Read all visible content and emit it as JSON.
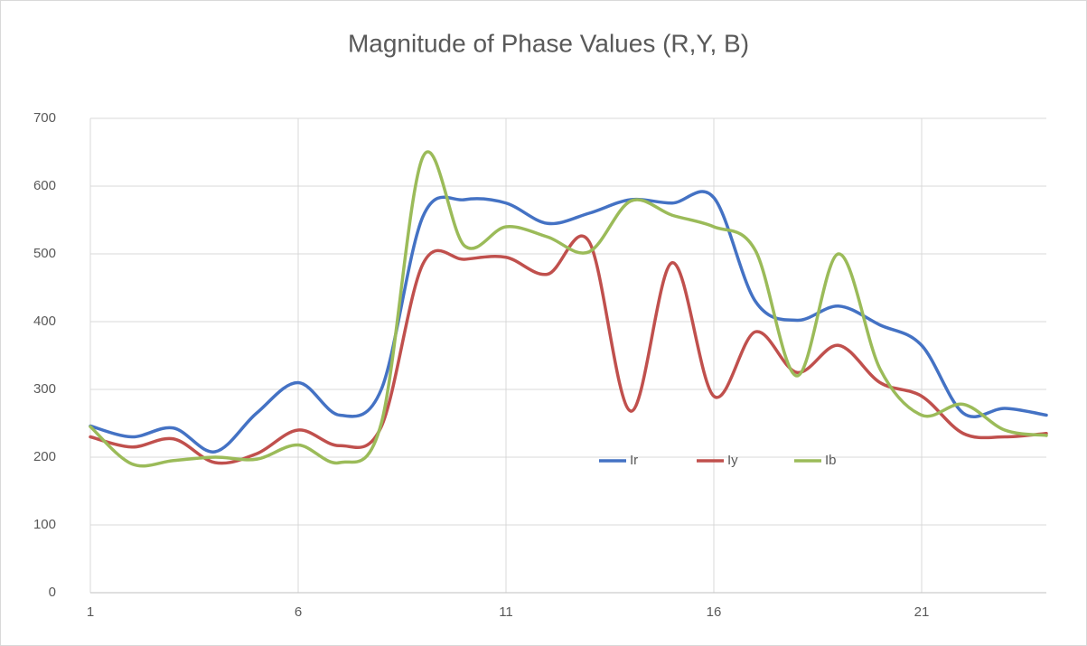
{
  "chart_data": {
    "type": "line",
    "title": "Magnitude of Phase Values (R,Y, B)",
    "x": [
      1,
      2,
      3,
      4,
      5,
      6,
      7,
      8,
      9,
      10,
      11,
      12,
      13,
      14,
      15,
      16,
      17,
      18,
      19,
      20,
      21,
      22,
      23,
      24
    ],
    "series": [
      {
        "name": "Ir",
        "color": "#4472c4",
        "values": [
          246,
          230,
          243,
          208,
          265,
          310,
          262,
          300,
          555,
          580,
          575,
          545,
          560,
          580,
          575,
          583,
          430,
          402,
          423,
          395,
          365,
          265,
          272,
          262
        ]
      },
      {
        "name": "Iy",
        "color": "#c0504d",
        "values": [
          230,
          215,
          227,
          192,
          205,
          240,
          217,
          245,
          485,
          492,
          495,
          470,
          518,
          268,
          487,
          290,
          385,
          325,
          365,
          310,
          290,
          235,
          230,
          235
        ]
      },
      {
        "name": "Ib",
        "color": "#9bbb59",
        "values": [
          245,
          190,
          195,
          200,
          197,
          218,
          192,
          250,
          643,
          512,
          540,
          525,
          503,
          578,
          557,
          540,
          505,
          320,
          500,
          330,
          262,
          278,
          240,
          232
        ]
      }
    ],
    "xlim": [
      1,
      24
    ],
    "xticks": [
      1,
      6,
      11,
      16,
      21
    ],
    "ylim": [
      0,
      700
    ],
    "yticks": [
      0,
      100,
      200,
      300,
      400,
      500,
      600,
      700
    ],
    "grid": true,
    "smooth": true
  }
}
